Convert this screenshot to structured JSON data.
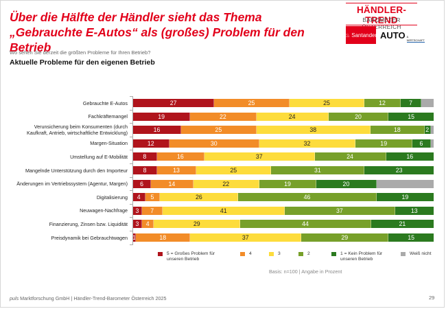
{
  "headline": "Über die Hälfte der Händler sieht das Thema „Gebrauchte E-Autos“ als (großes) Problem für den Betrieb",
  "logo": {
    "brand": "HÄNDLER-TREND",
    "sub": "BAROMETER ÖSTERREICH",
    "sponsor1": "Santander",
    "sponsor2": "AUTO",
    "sponsor2_sub": "& WIRTSCHAFT"
  },
  "question": "Wo sehen Sie derzeit die größten Probleme für Ihren Betrieb?",
  "subtitle": "Aktuelle Probleme für den eigenen Betrieb",
  "basis": "Basis: n=100 | Angabe in Prozent",
  "footer": {
    "brand": "puls",
    "text": " Marktforschung GmbH | Händler-Trend-Barometer Österreich 2025",
    "page": "29"
  },
  "colors": {
    "s5": "#b0141c",
    "s4": "#f28c28",
    "s3": "#fddc3c",
    "s2": "#77a02a",
    "s1": "#2b7a1f",
    "dk": "#aaaaaa"
  },
  "chart_data": {
    "type": "bar",
    "orientation": "horizontal",
    "stacked": true,
    "title": "Aktuelle Probleme für den eigenen Betrieb",
    "xlabel": "",
    "ylabel": "",
    "xlim": [
      0,
      100
    ],
    "unit": "%",
    "legend_position": "bottom",
    "categories": [
      "Gebrauchte E-Autos",
      "Fachkräftemangel",
      "Verunsicherung beim Konsumenten (durch Kaufkraft, Antrieb, wirtschaftliche Entwicklung)",
      "Margen-Situation",
      "Umstellung auf E-Mobilität",
      "Mangelnde Unterstützung durch den Importeur",
      "Änderungen im Vertriebssystem (Agentur, Margen)",
      "Digitalisierung",
      "Neuwagen-Nachfrage",
      "Finanzierung, Zinsen bzw. Liquidität",
      "Preisdynamik bei Gebrauchtwagen"
    ],
    "category_lines": [
      [
        "Gebrauchte E-Autos"
      ],
      [
        "Fachkräftemangel"
      ],
      [
        "Verunsicherung beim Konsumenten (durch",
        "Kaufkraft, Antrieb, wirtschaftliche Entwicklung)"
      ],
      [
        "Margen-Situation"
      ],
      [
        "Umstellung auf E-Mobilität"
      ],
      [
        "Mangelnde Unterstützung durch den Importeur"
      ],
      [
        "Änderungen im Vertriebssystem (Agentur, Margen)"
      ],
      [
        "Digitalisierung"
      ],
      [
        "Neuwagen-Nachfrage"
      ],
      [
        "Finanzierung, Zinsen bzw. Liquidität"
      ],
      [
        "Preisdynamik bei Gebrauchtwagen"
      ]
    ],
    "series": [
      {
        "key": "s5",
        "name": "5 = Großes Problem für unseren Betrieb",
        "values": [
          27,
          19,
          16,
          12,
          8,
          8,
          6,
          4,
          3,
          3,
          1
        ],
        "label_color": "#ffffff"
      },
      {
        "key": "s4",
        "name": "4",
        "values": [
          25,
          22,
          25,
          30,
          16,
          13,
          14,
          5,
          7,
          4,
          18
        ],
        "label_color": "#ffffff"
      },
      {
        "key": "s3",
        "name": "3",
        "values": [
          25,
          24,
          38,
          32,
          37,
          25,
          22,
          26,
          41,
          29,
          37
        ],
        "label_color": "#222222"
      },
      {
        "key": "s2",
        "name": "2",
        "values": [
          12,
          20,
          18,
          19,
          24,
          31,
          19,
          46,
          37,
          44,
          29
        ],
        "label_color": "#ffffff"
      },
      {
        "key": "s1",
        "name": "1 = Kein Problem für unseren Betrieb",
        "values": [
          7,
          15,
          2,
          6,
          16,
          23,
          20,
          19,
          13,
          21,
          15
        ],
        "label_color": "#ffffff"
      },
      {
        "key": "dk",
        "name": "Weiß nicht",
        "values": [
          4,
          0,
          1,
          1,
          0,
          0,
          19,
          0,
          0,
          0,
          0
        ],
        "label_color": "#ffffff",
        "labels_hidden": true
      }
    ],
    "legend": [
      {
        "key": "s5",
        "lines": [
          "5 = Großes Problem für",
          "unseren Betrieb"
        ]
      },
      {
        "key": "s4",
        "lines": [
          "4"
        ]
      },
      {
        "key": "s3",
        "lines": [
          "3"
        ]
      },
      {
        "key": "s2",
        "lines": [
          "2"
        ]
      },
      {
        "key": "s1",
        "lines": [
          "1 = Kein Problem für",
          "unseren Betrieb"
        ]
      },
      {
        "key": "dk",
        "lines": [
          "Weiß nicht"
        ]
      }
    ]
  }
}
